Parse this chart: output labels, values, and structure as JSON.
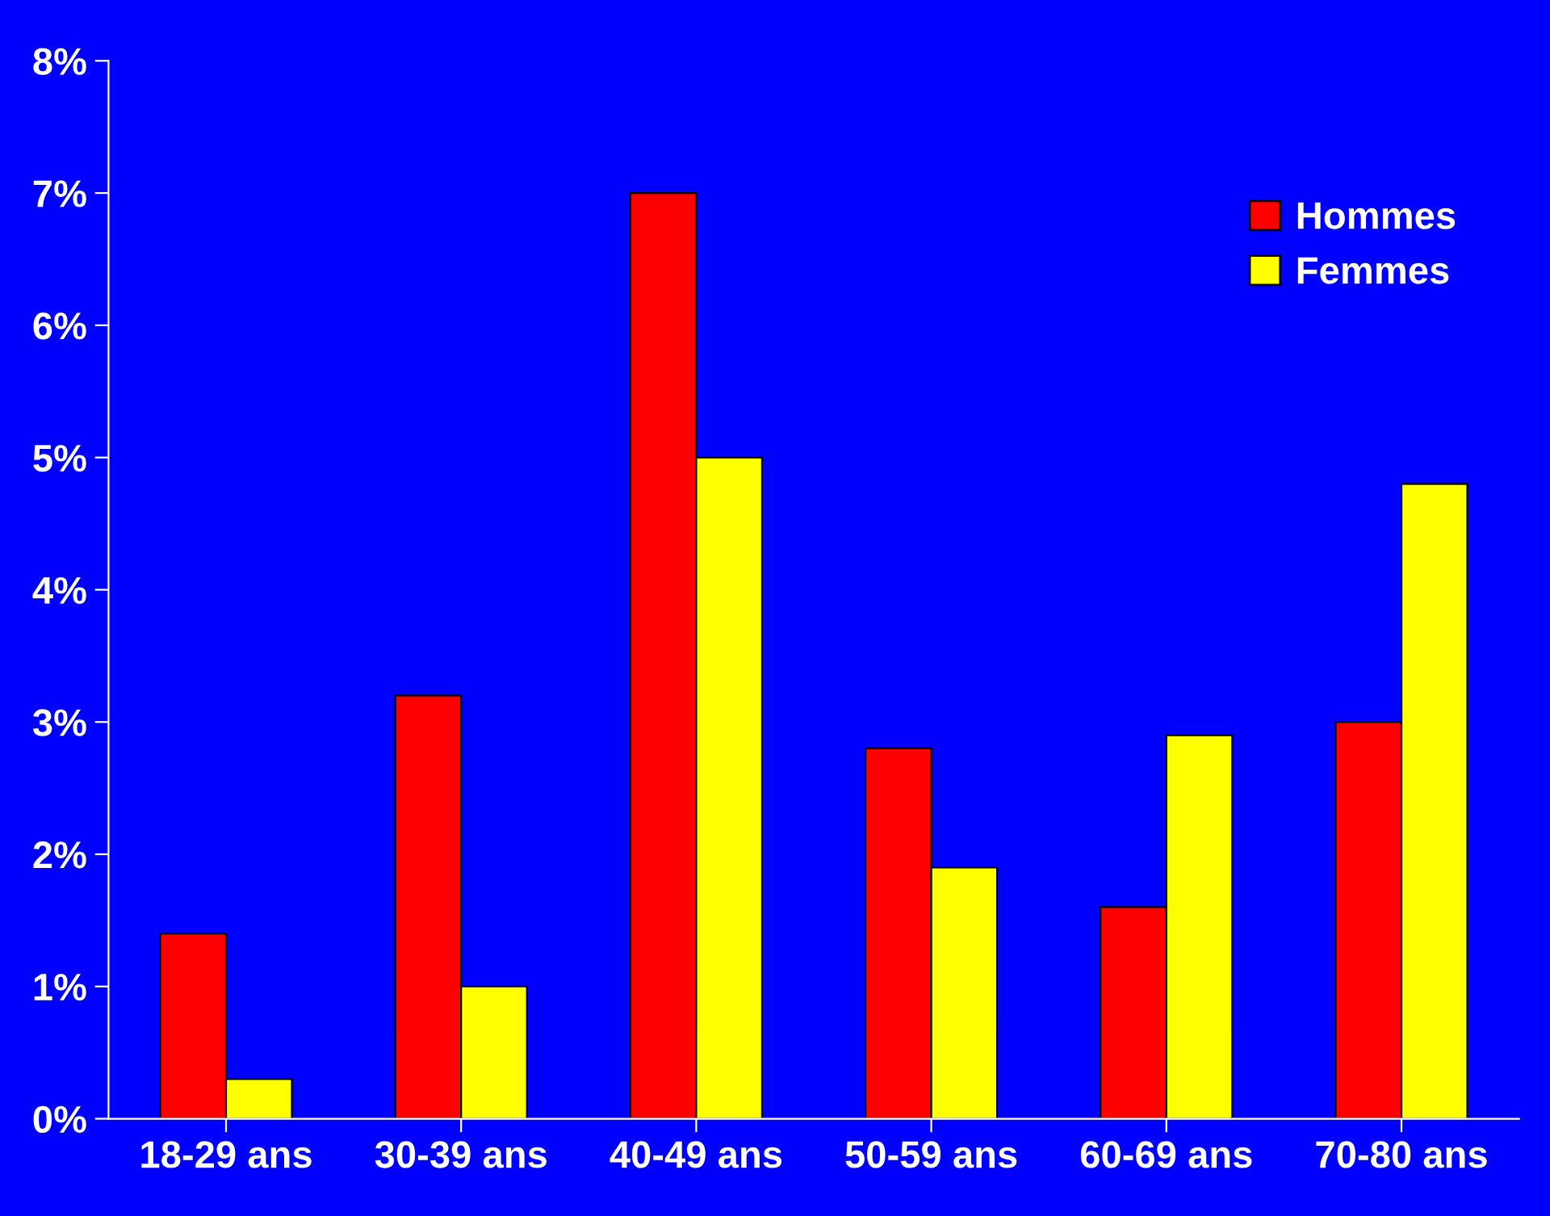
{
  "chart_data": {
    "type": "bar",
    "categories": [
      "18-29 ans",
      "30-39 ans",
      "40-49 ans",
      "50-59 ans",
      "60-69 ans",
      "70-80 ans"
    ],
    "series": [
      {
        "name": "Hommes",
        "color": "#ff0000",
        "values": [
          1.4,
          3.2,
          7.0,
          2.8,
          1.6,
          3.0
        ]
      },
      {
        "name": "Femmes",
        "color": "#ffff00",
        "values": [
          0.3,
          1.0,
          5.0,
          1.9,
          2.9,
          4.8
        ]
      }
    ],
    "ylim": [
      0,
      8
    ],
    "yticks": [
      {
        "value": 0,
        "label": "0%"
      },
      {
        "value": 1,
        "label": "1%"
      },
      {
        "value": 2,
        "label": "2%"
      },
      {
        "value": 3,
        "label": "3%"
      },
      {
        "value": 4,
        "label": "4%"
      },
      {
        "value": 5,
        "label": "5%"
      },
      {
        "value": 6,
        "label": "6%"
      },
      {
        "value": 7,
        "label": "7%"
      },
      {
        "value": 8,
        "label": "8%"
      }
    ],
    "grid": false,
    "legend": "top right"
  }
}
